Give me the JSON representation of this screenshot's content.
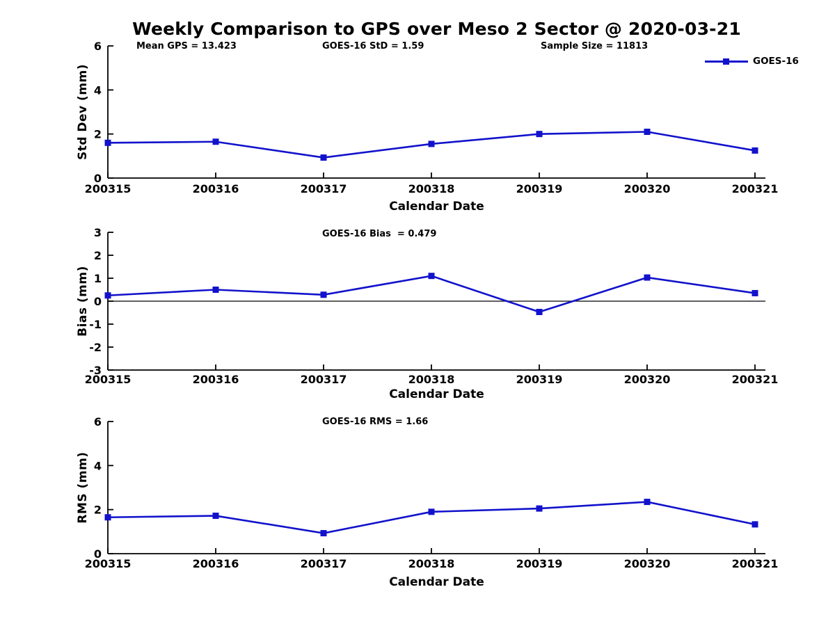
{
  "page_title": "Weekly Comparison to GPS over Meso 2 Sector @ 2020-03-21",
  "header": {
    "annotations": [
      "Mean GPS = 13.423",
      "GOES-16 StD = 1.59",
      "Sample Size = 11813"
    ]
  },
  "legend": {
    "label": "GOES-16",
    "marker": "filled-square",
    "position": "top-right"
  },
  "colors": {
    "series_line": "#1212cc",
    "axis": "#000000",
    "zero_line": "#000000",
    "text": "#000000",
    "background": "#ffffff"
  },
  "chart_data": [
    {
      "type": "line",
      "name": "std-dev-subplot",
      "title": "",
      "categories": [
        "200315",
        "200316",
        "200317",
        "200318",
        "200319",
        "200320",
        "200321"
      ],
      "series": [
        {
          "name": "GOES-16",
          "values": [
            1.6,
            1.65,
            0.93,
            1.55,
            2.0,
            2.1,
            1.25
          ]
        }
      ],
      "xlabel": "Calendar Date",
      "ylabel": "Std Dev (mm)",
      "ylim": [
        0,
        6
      ],
      "yticks": [
        0,
        2,
        4,
        6
      ],
      "annotation": "",
      "zero_line": false,
      "grid": false,
      "legend_position": "top-right"
    },
    {
      "type": "line",
      "name": "bias-subplot",
      "title": "",
      "categories": [
        "200315",
        "200316",
        "200317",
        "200318",
        "200319",
        "200320",
        "200321"
      ],
      "series": [
        {
          "name": "GOES-16",
          "values": [
            0.25,
            0.5,
            0.28,
            1.1,
            -0.47,
            1.03,
            0.35
          ]
        }
      ],
      "xlabel": "Calendar Date",
      "ylabel": "Bias (mm)",
      "ylim": [
        -3,
        3
      ],
      "yticks": [
        -3,
        -2,
        -1,
        0,
        1,
        2,
        3
      ],
      "annotation": "GOES-16 Bias  = 0.479",
      "zero_line": true,
      "grid": false,
      "legend_position": "none"
    },
    {
      "type": "line",
      "name": "rms-subplot",
      "title": "",
      "categories": [
        "200315",
        "200316",
        "200317",
        "200318",
        "200319",
        "200320",
        "200321"
      ],
      "series": [
        {
          "name": "GOES-16",
          "values": [
            1.65,
            1.72,
            0.93,
            1.9,
            2.05,
            2.35,
            1.33
          ]
        }
      ],
      "xlabel": "Calendar Date",
      "ylabel": "RMS (mm)",
      "ylim": [
        0,
        6
      ],
      "yticks": [
        0,
        2,
        4,
        6
      ],
      "annotation": "GOES-16 RMS = 1.66",
      "zero_line": false,
      "grid": false,
      "legend_position": "none"
    }
  ]
}
